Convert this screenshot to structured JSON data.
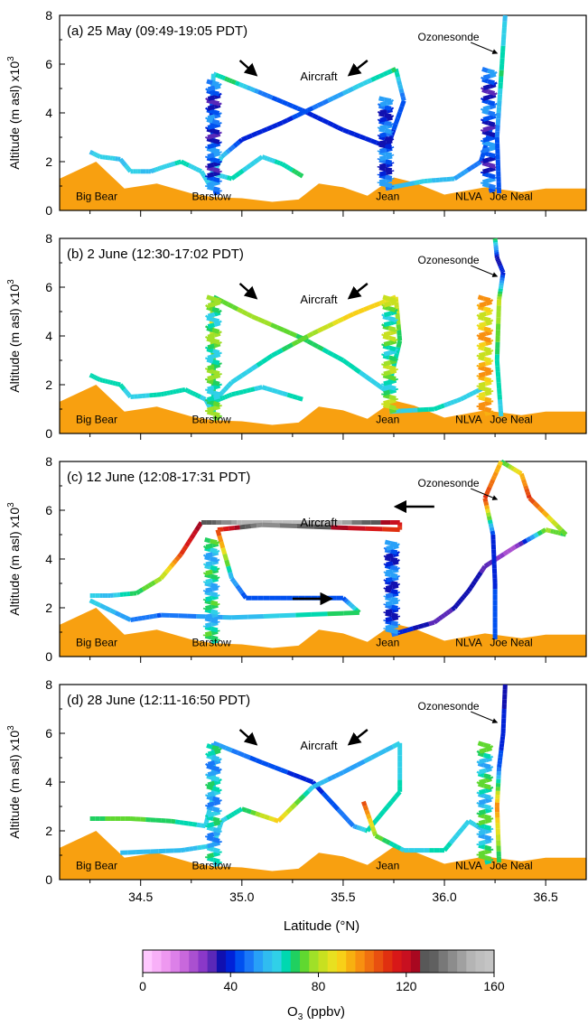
{
  "figure": {
    "ylabel": "Altitude (m asl) x10",
    "ylabel_exp": "3",
    "xlabel": "Latitude (°N)",
    "colorbar": {
      "label_main": "O",
      "label_sub": "3",
      "label_rest": " (ppbv)",
      "ticks": [
        "0",
        "40",
        "80",
        "120",
        "160"
      ],
      "range": [
        0,
        160
      ],
      "colors": [
        "#ffc8ff",
        "#f8b0f8",
        "#ee98f0",
        "#dc80e8",
        "#c868dc",
        "#aa50d0",
        "#8a38c8",
        "#5a28b8",
        "#1010b0",
        "#0022d8",
        "#0050f0",
        "#1a78f8",
        "#28a0f8",
        "#30bcf0",
        "#30d0e8",
        "#00d8b0",
        "#20d060",
        "#60d830",
        "#a0e028",
        "#c8e020",
        "#e8e020",
        "#f8d018",
        "#f8b010",
        "#f89010",
        "#f07010",
        "#e85010",
        "#e03010",
        "#d81818",
        "#c81020",
        "#a80820",
        "#585858",
        "#606060",
        "#787878",
        "#8c8c8c",
        "#a0a0a0",
        "#b4b4b4",
        "#bebebe",
        "#c4c4c4"
      ]
    }
  },
  "chart_data": [
    {
      "type": "line",
      "panel_label": "(a) 25 May (09:49-19:05 PDT)",
      "ylim": [
        0,
        8
      ],
      "xlim": [
        34.1,
        36.7
      ],
      "yticks": [
        "0",
        "2",
        "4",
        "6",
        "8"
      ],
      "xticks": [
        "34.5",
        "35.0",
        "35.5",
        "36.0",
        "36.5"
      ],
      "show_xtick_labels": false,
      "terrain": [
        [
          34.1,
          1.3
        ],
        [
          34.28,
          2.0
        ],
        [
          34.42,
          0.9
        ],
        [
          34.58,
          1.1
        ],
        [
          34.75,
          0.7
        ],
        [
          34.85,
          0.55
        ],
        [
          35.0,
          0.5
        ],
        [
          35.15,
          0.35
        ],
        [
          35.28,
          0.45
        ],
        [
          35.38,
          1.1
        ],
        [
          35.5,
          0.95
        ],
        [
          35.62,
          0.6
        ],
        [
          35.75,
          1.35
        ],
        [
          35.85,
          1.15
        ],
        [
          36.0,
          0.65
        ],
        [
          36.2,
          0.95
        ],
        [
          36.38,
          0.75
        ],
        [
          36.5,
          0.9
        ],
        [
          36.7,
          0.9
        ]
      ],
      "sites": [
        "Big Bear",
        "Barstow",
        "Jean",
        "NLVA",
        "Joe Neal"
      ],
      "aircraft_label": "Aircraft",
      "ozonesonde_label": "Ozonesonde",
      "flight_track": [
        [
          34.25,
          2.4,
          58
        ],
        [
          34.3,
          2.2,
          62
        ],
        [
          34.4,
          2.1,
          58
        ],
        [
          34.45,
          1.6,
          60
        ],
        [
          34.55,
          1.6,
          58
        ],
        [
          34.62,
          1.8,
          62
        ],
        [
          34.7,
          2.0,
          64
        ],
        [
          34.8,
          1.6,
          62
        ],
        [
          34.85,
          0.9,
          60
        ],
        [
          34.86,
          2.6,
          52
        ],
        [
          34.85,
          4.0,
          38
        ],
        [
          34.86,
          5.6,
          62
        ],
        [
          34.95,
          5.3,
          70
        ],
        [
          35.1,
          4.8,
          48
        ],
        [
          35.3,
          4.1,
          42
        ],
        [
          35.5,
          3.3,
          38
        ],
        [
          35.72,
          2.6,
          40
        ],
        [
          35.8,
          4.5,
          46
        ],
        [
          35.76,
          5.8,
          68
        ],
        [
          35.6,
          5.2,
          62
        ],
        [
          35.4,
          4.4,
          48
        ],
        [
          35.2,
          3.6,
          40
        ],
        [
          35.0,
          2.9,
          38
        ],
        [
          34.9,
          2.2,
          60
        ],
        [
          34.86,
          1.5,
          60
        ],
        [
          34.95,
          1.3,
          64
        ],
        [
          35.1,
          2.2,
          62
        ],
        [
          35.2,
          1.9,
          64
        ],
        [
          35.3,
          1.4,
          70
        ]
      ],
      "climb_spirals": [
        {
          "x": 34.86,
          "y0": 0.7,
          "y1": 5.3,
          "value": 42
        },
        {
          "x": 35.71,
          "y0": 0.9,
          "y1": 4.6,
          "value": 44
        },
        {
          "x": 36.22,
          "y0": 0.8,
          "y1": 5.8,
          "value": 42
        }
      ],
      "return_track": [
        [
          35.71,
          0.9,
          56
        ],
        [
          35.9,
          1.2,
          60
        ],
        [
          36.05,
          1.3,
          55
        ],
        [
          36.18,
          2.0,
          46
        ],
        [
          36.23,
          3.4,
          44
        ]
      ],
      "sonde": [
        {
          "x": 36.27,
          "y": 0.7,
          "value": 46
        },
        {
          "x": 36.26,
          "y": 3.0,
          "value": 46
        },
        {
          "x": 36.28,
          "y": 5.5,
          "value": 68
        },
        {
          "x": 36.3,
          "y": 8.0,
          "value": 58
        }
      ]
    },
    {
      "type": "line",
      "panel_label": "(b) 2 June (12:30-17:02 PDT)",
      "ylim": [
        0,
        8
      ],
      "xlim": [
        34.1,
        36.7
      ],
      "yticks": [
        "0",
        "2",
        "4",
        "6",
        "8"
      ],
      "xticks": [
        "34.5",
        "35.0",
        "35.5",
        "36.0",
        "36.5"
      ],
      "show_xtick_labels": false,
      "terrain": [
        [
          34.1,
          1.3
        ],
        [
          34.28,
          2.0
        ],
        [
          34.42,
          0.9
        ],
        [
          34.58,
          1.1
        ],
        [
          34.75,
          0.7
        ],
        [
          34.85,
          0.55
        ],
        [
          35.0,
          0.5
        ],
        [
          35.15,
          0.35
        ],
        [
          35.28,
          0.45
        ],
        [
          35.38,
          1.1
        ],
        [
          35.5,
          0.95
        ],
        [
          35.62,
          0.6
        ],
        [
          35.75,
          1.35
        ],
        [
          35.85,
          1.15
        ],
        [
          36.0,
          0.65
        ],
        [
          36.2,
          0.95
        ],
        [
          36.38,
          0.75
        ],
        [
          36.5,
          0.9
        ],
        [
          36.7,
          0.9
        ]
      ],
      "sites": [
        "Big Bear",
        "Barstow",
        "Jean",
        "NLVA",
        "Joe Neal"
      ],
      "aircraft_label": "Aircraft",
      "ozonesonde_label": "Ozonesonde",
      "flight_track": [
        [
          34.25,
          2.4,
          64
        ],
        [
          34.3,
          2.2,
          66
        ],
        [
          34.4,
          2.0,
          64
        ],
        [
          34.45,
          1.5,
          62
        ],
        [
          34.6,
          1.6,
          64
        ],
        [
          34.72,
          1.8,
          66
        ],
        [
          34.82,
          1.4,
          62
        ],
        [
          34.86,
          0.8,
          64
        ],
        [
          34.86,
          3.0,
          72
        ],
        [
          34.85,
          4.5,
          86
        ],
        [
          34.86,
          5.6,
          70
        ],
        [
          35.05,
          4.8,
          80
        ],
        [
          35.3,
          3.9,
          70
        ],
        [
          35.5,
          3.0,
          64
        ],
        [
          35.72,
          1.7,
          62
        ],
        [
          35.78,
          3.8,
          68
        ],
        [
          35.76,
          5.6,
          86
        ],
        [
          35.55,
          4.9,
          92
        ],
        [
          35.35,
          4.1,
          78
        ],
        [
          35.15,
          3.2,
          64
        ],
        [
          34.95,
          2.1,
          62
        ],
        [
          34.86,
          1.3,
          64
        ],
        [
          34.95,
          1.6,
          66
        ],
        [
          35.1,
          1.9,
          62
        ],
        [
          35.3,
          1.4,
          64
        ]
      ],
      "climb_spirals": [
        {
          "x": 34.86,
          "y0": 0.6,
          "y1": 5.6,
          "value": 70
        },
        {
          "x": 35.73,
          "y0": 0.9,
          "y1": 5.6,
          "value": 72
        },
        {
          "x": 36.2,
          "y0": 0.8,
          "y1": 5.6,
          "value": 90
        }
      ],
      "return_track": [
        [
          35.73,
          0.9,
          62
        ],
        [
          35.95,
          1.0,
          64
        ],
        [
          36.08,
          1.4,
          62
        ],
        [
          36.2,
          1.9,
          58
        ]
      ],
      "sonde": [
        {
          "x": 36.28,
          "y": 0.7,
          "value": 62
        },
        {
          "x": 36.26,
          "y": 3.0,
          "value": 66
        },
        {
          "x": 36.27,
          "y": 5.5,
          "value": 82
        },
        {
          "x": 36.29,
          "y": 6.6,
          "value": 40
        },
        {
          "x": 36.26,
          "y": 7.2,
          "value": 36
        },
        {
          "x": 36.25,
          "y": 8.0,
          "value": 70
        }
      ]
    },
    {
      "type": "line",
      "panel_label": "(c) 12 June (12:08-17:31 PDT)",
      "ylim": [
        0,
        8
      ],
      "xlim": [
        34.1,
        36.7
      ],
      "yticks": [
        "0",
        "2",
        "4",
        "6",
        "8"
      ],
      "xticks": [
        "34.5",
        "35.0",
        "35.5",
        "36.0",
        "36.5"
      ],
      "show_xtick_labels": false,
      "terrain": [
        [
          34.1,
          1.3
        ],
        [
          34.28,
          2.0
        ],
        [
          34.42,
          0.9
        ],
        [
          34.58,
          1.1
        ],
        [
          34.75,
          0.7
        ],
        [
          34.85,
          0.55
        ],
        [
          35.0,
          0.5
        ],
        [
          35.15,
          0.35
        ],
        [
          35.28,
          0.45
        ],
        [
          35.38,
          1.1
        ],
        [
          35.5,
          0.95
        ],
        [
          35.62,
          0.6
        ],
        [
          35.75,
          1.35
        ],
        [
          35.85,
          1.15
        ],
        [
          36.0,
          0.65
        ],
        [
          36.2,
          0.95
        ],
        [
          36.38,
          0.75
        ],
        [
          36.5,
          0.9
        ],
        [
          36.7,
          0.9
        ]
      ],
      "sites": [
        "Big Bear",
        "Barstow",
        "Jean",
        "NLVA",
        "Joe Neal"
      ],
      "aircraft_label": "Aircraft",
      "ozonesonde_label": "Ozonesonde",
      "flight_track": [
        [
          34.25,
          2.5,
          60
        ],
        [
          34.35,
          2.5,
          58
        ],
        [
          34.48,
          2.6,
          70
        ],
        [
          34.6,
          3.2,
          78
        ],
        [
          34.7,
          4.2,
          110
        ],
        [
          34.8,
          5.5,
          125
        ],
        [
          35.0,
          5.5,
          150
        ],
        [
          35.4,
          5.5,
          155
        ],
        [
          35.78,
          5.5,
          118
        ],
        [
          35.78,
          5.2,
          110
        ],
        [
          35.1,
          5.4,
          145
        ],
        [
          34.88,
          5.2,
          110
        ],
        [
          34.95,
          3.2,
          55
        ],
        [
          35.02,
          2.4,
          44
        ],
        [
          35.25,
          2.4,
          42
        ],
        [
          35.5,
          2.4,
          44
        ],
        [
          35.58,
          1.8,
          70
        ],
        [
          34.95,
          1.6,
          56
        ],
        [
          34.6,
          1.7,
          46
        ],
        [
          34.45,
          1.5,
          50
        ],
        [
          34.25,
          2.3,
          62
        ]
      ],
      "climb_spirals": [
        {
          "x": 34.85,
          "y0": 0.6,
          "y1": 4.8,
          "value": 62
        },
        {
          "x": 35.74,
          "y0": 0.9,
          "y1": 4.7,
          "value": 44
        }
      ],
      "return_track": [
        [
          35.74,
          0.9,
          44
        ],
        [
          35.95,
          1.4,
          32
        ],
        [
          36.05,
          2.0,
          34
        ],
        [
          36.12,
          2.7,
          38
        ],
        [
          36.2,
          3.7,
          32
        ],
        [
          36.35,
          4.5,
          22
        ],
        [
          36.5,
          5.2,
          78
        ],
        [
          36.6,
          5.0,
          70
        ],
        [
          36.42,
          6.5,
          112
        ],
        [
          36.38,
          7.5,
          92
        ],
        [
          36.28,
          8.0,
          68
        ]
      ],
      "sonde": [
        {
          "x": 36.25,
          "y": 0.7,
          "value": 44
        },
        {
          "x": 36.25,
          "y": 3.0,
          "value": 42
        },
        {
          "x": 36.24,
          "y": 5.0,
          "value": 40
        },
        {
          "x": 36.2,
          "y": 6.5,
          "value": 112
        },
        {
          "x": 36.28,
          "y": 8.0,
          "value": 90
        }
      ]
    },
    {
      "type": "line",
      "panel_label": "(d) 28 June (12:11-16:50 PDT)",
      "ylim": [
        0,
        8
      ],
      "xlim": [
        34.1,
        36.7
      ],
      "yticks": [
        "0",
        "2",
        "4",
        "6",
        "8"
      ],
      "xticks": [
        "34.5",
        "35.0",
        "35.5",
        "36.0",
        "36.5"
      ],
      "show_xtick_labels": true,
      "terrain": [
        [
          34.1,
          1.3
        ],
        [
          34.28,
          2.0
        ],
        [
          34.42,
          0.9
        ],
        [
          34.58,
          1.1
        ],
        [
          34.75,
          0.7
        ],
        [
          34.85,
          0.55
        ],
        [
          35.0,
          0.5
        ],
        [
          35.15,
          0.35
        ],
        [
          35.28,
          0.45
        ],
        [
          35.38,
          1.1
        ],
        [
          35.5,
          0.95
        ],
        [
          35.62,
          0.6
        ],
        [
          35.75,
          1.35
        ],
        [
          35.85,
          1.15
        ],
        [
          36.0,
          0.65
        ],
        [
          36.2,
          0.95
        ],
        [
          36.38,
          0.75
        ],
        [
          36.5,
          0.9
        ],
        [
          36.7,
          0.9
        ]
      ],
      "sites": [
        "Big Bear",
        "Barstow",
        "Jean",
        "NLVA",
        "Joe Neal"
      ],
      "aircraft_label": "Aircraft",
      "ozonesonde_label": "Ozonesonde",
      "flight_track": [
        [
          34.25,
          2.5,
          70
        ],
        [
          34.45,
          2.5,
          74
        ],
        [
          34.65,
          2.4,
          68
        ],
        [
          34.82,
          2.2,
          62
        ],
        [
          34.86,
          3.5,
          60
        ],
        [
          34.86,
          5.6,
          54
        ],
        [
          35.1,
          4.8,
          44
        ],
        [
          35.35,
          4.0,
          40
        ],
        [
          35.55,
          2.2,
          50
        ],
        [
          35.62,
          2.0,
          66
        ],
        [
          35.78,
          3.6,
          64
        ],
        [
          35.78,
          5.6,
          60
        ],
        [
          35.5,
          4.4,
          52
        ],
        [
          35.35,
          3.8,
          58
        ],
        [
          35.18,
          2.4,
          92
        ],
        [
          35.0,
          2.9,
          66
        ],
        [
          34.9,
          2.4,
          62
        ],
        [
          34.86,
          1.4,
          60
        ],
        [
          34.7,
          1.2,
          58
        ],
        [
          34.4,
          1.1,
          56
        ]
      ],
      "climb_spirals": [
        {
          "x": 34.86,
          "y0": 0.6,
          "y1": 5.5,
          "value": 58
        },
        {
          "x": 36.2,
          "y0": 0.7,
          "y1": 5.6,
          "value": 64
        }
      ],
      "return_track": [
        [
          35.6,
          3.2,
          110
        ],
        [
          35.66,
          1.8,
          74
        ],
        [
          35.8,
          1.2,
          62
        ],
        [
          36.0,
          1.2,
          64
        ],
        [
          36.12,
          2.4,
          60
        ],
        [
          36.2,
          2.0,
          58
        ]
      ],
      "sonde": [
        {
          "x": 36.27,
          "y": 0.7,
          "value": 66
        },
        {
          "x": 36.26,
          "y": 3.0,
          "value": 100
        },
        {
          "x": 36.27,
          "y": 4.6,
          "value": 44
        },
        {
          "x": 36.29,
          "y": 6.0,
          "value": 40
        },
        {
          "x": 36.3,
          "y": 8.0,
          "value": 36
        }
      ]
    }
  ]
}
